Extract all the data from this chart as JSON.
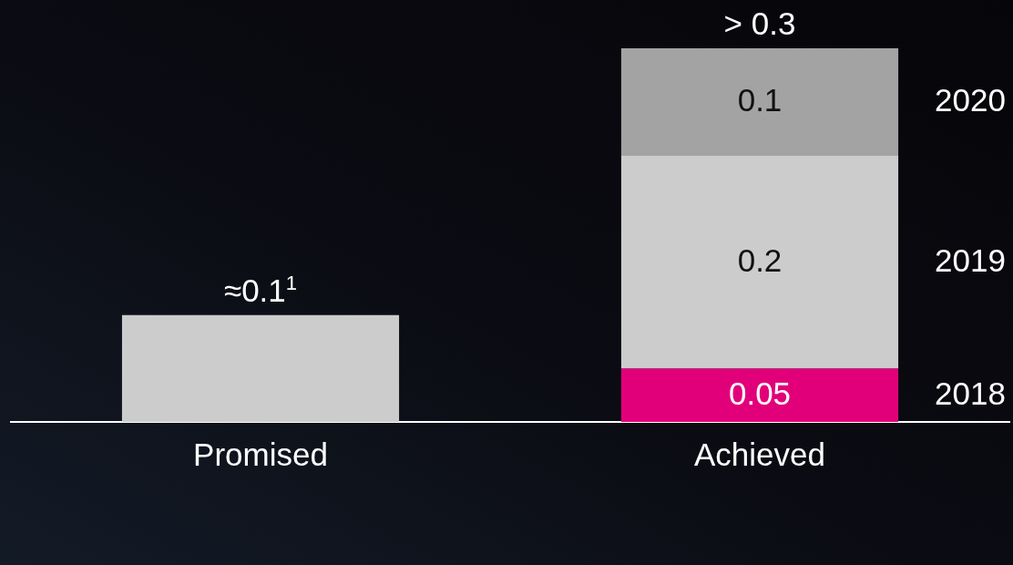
{
  "chart_data": {
    "type": "bar",
    "categories": [
      "Promised",
      "Achieved"
    ],
    "stacked": true,
    "legend": false,
    "series": [
      {
        "color": "#cccccc",
        "values": [
          0.1,
          null
        ]
      },
      {
        "name": "2018",
        "color": "#e2007a",
        "values": [
          null,
          0.05
        ],
        "value_labels": [
          null,
          "0.05"
        ]
      },
      {
        "name": "2019",
        "color": "#cccccc",
        "values": [
          null,
          0.2
        ],
        "value_labels": [
          null,
          "0.2"
        ]
      },
      {
        "name": "2020",
        "color": "#a3a3a3",
        "values": [
          null,
          0.1
        ],
        "value_labels": [
          null,
          "0.1"
        ]
      }
    ],
    "totals": [
      "≈0.1$^{1}$",
      "> 0.3"
    ]
  }
}
